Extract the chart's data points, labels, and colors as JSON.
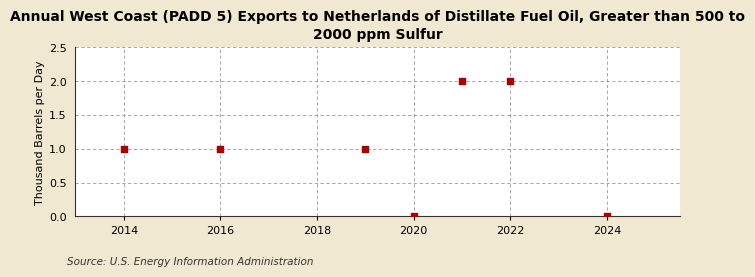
{
  "title": "Annual West Coast (PADD 5) Exports to Netherlands of Distillate Fuel Oil, Greater than 500 to\n2000 ppm Sulfur",
  "ylabel": "Thousand Barrels per Day",
  "source": "Source: U.S. Energy Information Administration",
  "background_color": "#f0e8d0",
  "plot_background_color": "#ffffff",
  "data_x": [
    2014,
    2016,
    2019,
    2020,
    2021,
    2022,
    2024
  ],
  "data_y": [
    1.0,
    1.0,
    1.0,
    0.0,
    2.0,
    2.0,
    0.0
  ],
  "marker_color": "#aa0000",
  "marker_size": 4,
  "xlim": [
    2013.0,
    2025.5
  ],
  "ylim": [
    0.0,
    2.5
  ],
  "xticks": [
    2014,
    2016,
    2018,
    2020,
    2022,
    2024
  ],
  "yticks": [
    0.0,
    0.5,
    1.0,
    1.5,
    2.0,
    2.5
  ],
  "grid_color": "#999999",
  "title_fontsize": 10,
  "label_fontsize": 8,
  "tick_fontsize": 8,
  "source_fontsize": 7.5
}
